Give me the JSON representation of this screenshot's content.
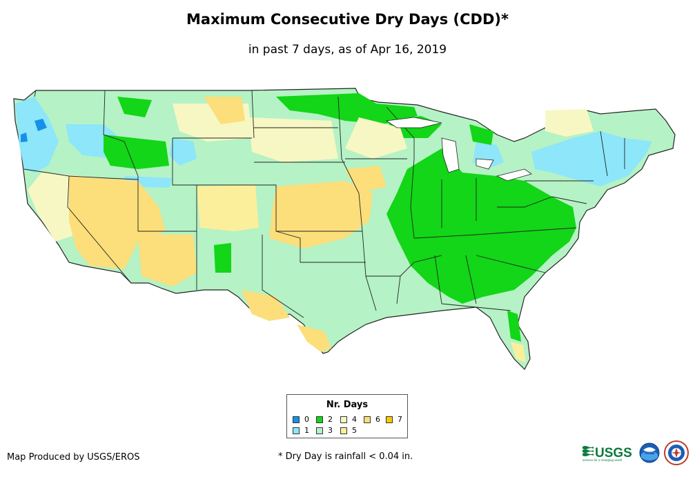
{
  "title": "Maximum Consecutive Dry Days (CDD)*",
  "subtitle": "in past 7 days, as of Apr 16, 2019",
  "legend": {
    "title": "Nr. Days",
    "items": [
      {
        "label": "0",
        "color": "#1591ea"
      },
      {
        "label": "1",
        "color": "#8de6f9"
      },
      {
        "label": "2",
        "color": "#12d617"
      },
      {
        "label": "3",
        "color": "#b5f2c5"
      },
      {
        "label": "4",
        "color": "#f7f7c4"
      },
      {
        "label": "5",
        "color": "#fbef9b"
      },
      {
        "label": "6",
        "color": "#fcde7a"
      },
      {
        "label": "7",
        "color": "#fac900"
      }
    ]
  },
  "footer": {
    "credit": "Map Produced by USGS/EROS",
    "note": "* Dry Day is rainfall < 0.04 in."
  },
  "logos": {
    "usgs": "USGS",
    "usgs_tagline": "science for a changing world",
    "noaa": "noaa",
    "nws": "nws-logo"
  }
}
